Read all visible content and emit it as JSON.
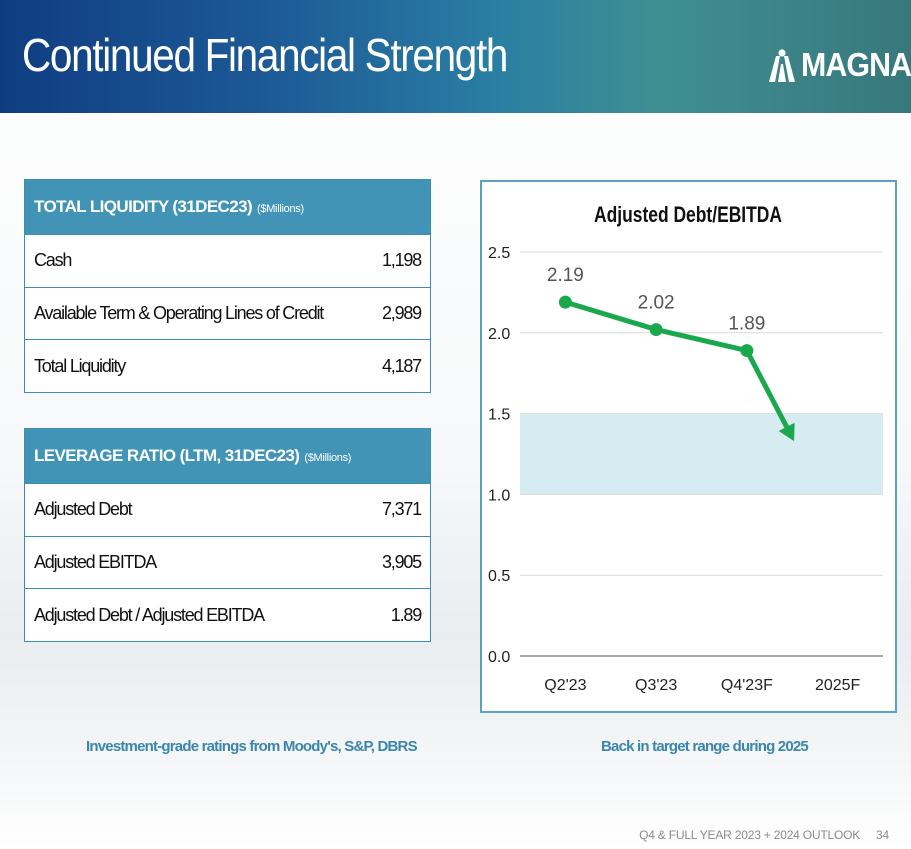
{
  "header": {
    "title": "Continued Financial Strength",
    "logo_text": "MAGNA"
  },
  "liquidity_table": {
    "title": "TOTAL LIQUIDITY (31DEC23)",
    "unit": "($Millions)",
    "rows": [
      {
        "label": "Cash",
        "value": "1,198"
      },
      {
        "label": "Available Term & Operating Lines of Credit",
        "value": "2,989"
      },
      {
        "label": "Total Liquidity",
        "value": "4,187"
      }
    ]
  },
  "leverage_table": {
    "title": "LEVERAGE RATIO (LTM, 31DEC23)",
    "unit": "($Millions)",
    "rows": [
      {
        "label": "Adjusted Debt",
        "value": "7,371"
      },
      {
        "label": "Adjusted EBITDA",
        "value": "3,905"
      },
      {
        "label": "Adjusted Debt / Adjusted EBITDA",
        "value": "1.89"
      }
    ]
  },
  "notes": {
    "left": "Investment-grade ratings from Moody's, S&P, DBRS",
    "right": "Back in target range during 2025"
  },
  "footer": {
    "text": "Q4 & FULL YEAR 2023 + 2024 OUTLOOK",
    "page": "34"
  },
  "colors": {
    "line": "#1aa84c",
    "target_band": "#d7ebf2",
    "header_accent": "#4294b7",
    "note_text": "#3a86ad"
  },
  "chart_data": {
    "type": "line",
    "title": "Adjusted Debt/EBITDA",
    "categories": [
      "Q2'23",
      "Q3'23",
      "Q4'23F",
      "2025F"
    ],
    "series": [
      {
        "name": "Adjusted Debt/EBITDA",
        "values": [
          2.19,
          2.02,
          1.89,
          null
        ]
      }
    ],
    "data_labels": [
      "2.19",
      "2.02",
      "1.89"
    ],
    "ylim": [
      0,
      2.5
    ],
    "yticks": [
      0,
      0.5,
      1.0,
      1.5,
      2.0,
      2.5
    ],
    "ytick_labels": [
      "0.0",
      "0.5",
      "1.0",
      "1.5",
      "2.0",
      "2.5"
    ],
    "target_range": [
      1.0,
      1.5
    ],
    "trend_arrow": {
      "from_category": "Q4'23F",
      "from_value": 1.89,
      "to_value": 1.33
    },
    "grid": true,
    "xlabel": "",
    "ylabel": ""
  }
}
